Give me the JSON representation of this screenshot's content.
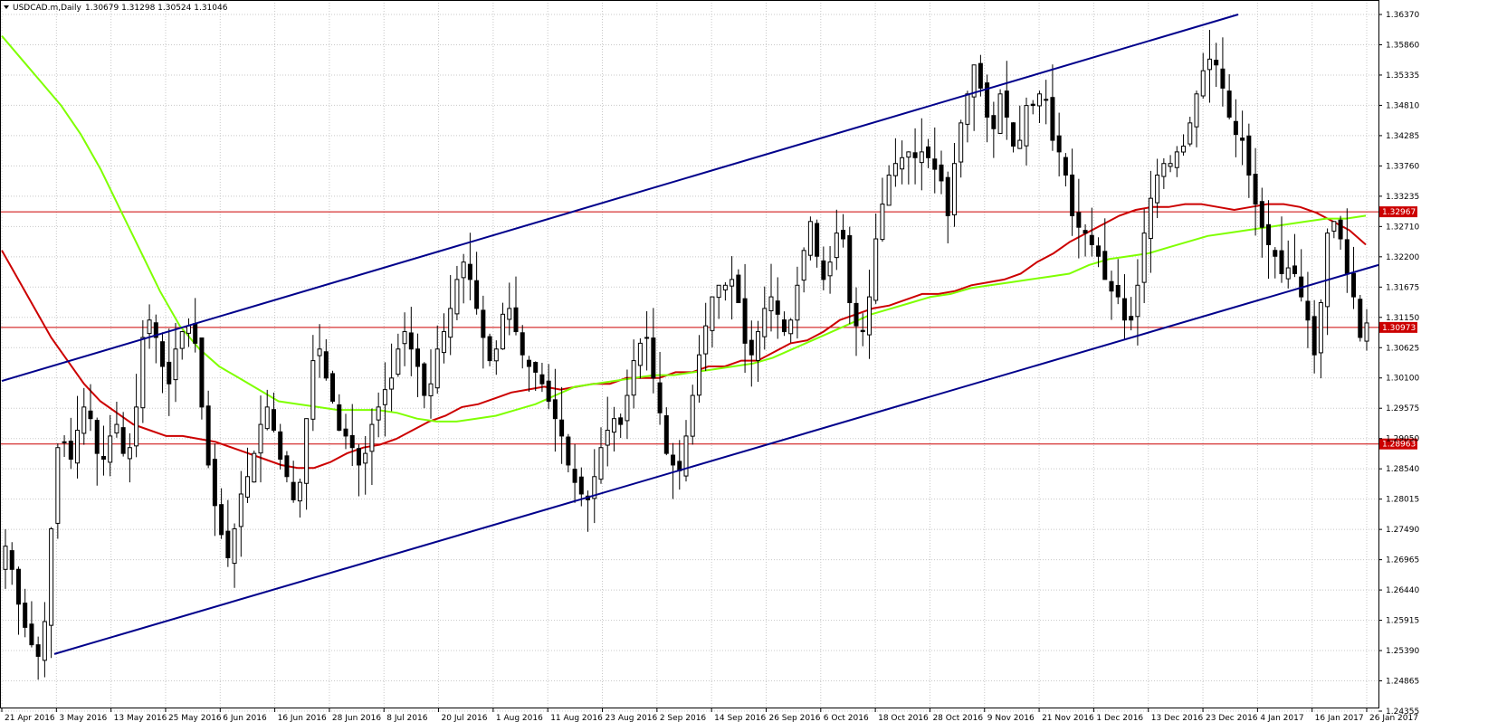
{
  "window": {
    "symbol_info": "USDCAD.m,Daily",
    "ohlc": "1.30679 1.31298 1.30524 1.31046"
  },
  "colors": {
    "background": "#ffffff",
    "grid": "#c8c8c8",
    "candle_bull_fill": "#ffffff",
    "candle_bear_fill": "#000000",
    "channel_line": "#00008b",
    "ma_fast": "#cc0000",
    "ma_slow": "#7fff00",
    "level_line": "#cc0000",
    "level_tag": "#cc0000"
  },
  "chart_data": {
    "type": "candlestick",
    "instrument": "USDCAD",
    "timeframe": "Daily",
    "ylim": [
      1.2435,
      1.637
    ],
    "y_ticks": [
      "1.36370",
      "1.35860",
      "1.35335",
      "1.34810",
      "1.34285",
      "1.33760",
      "1.33235",
      "1.32710",
      "1.32200",
      "1.31675",
      "1.31150",
      "1.30625",
      "1.30100",
      "1.29575",
      "1.29050",
      "1.28540",
      "1.28015",
      "1.27490",
      "1.26965",
      "1.26440",
      "1.25915",
      "1.25390",
      "1.24865",
      "1.24355"
    ],
    "x_ticks": [
      "21 Apr 2016",
      "3 May 2016",
      "13 May 2016",
      "25 May 2016",
      "6 Jun 2016",
      "16 Jun 2016",
      "28 Jun 2016",
      "8 Jul 2016",
      "20 Jul 2016",
      "1 Aug 2016",
      "11 Aug 2016",
      "23 Aug 2016",
      "2 Sep 2016",
      "14 Sep 2016",
      "26 Sep 2016",
      "6 Oct 2016",
      "18 Oct 2016",
      "28 Oct 2016",
      "9 Nov 2016",
      "21 Nov 2016",
      "1 Dec 2016",
      "13 Dec 2016",
      "23 Dec 2016",
      "4 Jan 2017",
      "16 Jan 2017",
      "26 Jan 2017"
    ],
    "horizontal_levels": [
      {
        "label": "1.32967",
        "value": 1.32967
      },
      {
        "label": "1.30973",
        "value": 1.30973
      },
      {
        "label": "1.28963",
        "value": 1.28963
      }
    ],
    "closes": [
      1.272,
      1.268,
      1.262,
      1.258,
      1.255,
      1.253,
      1.259,
      1.275,
      1.289,
      1.29,
      1.287,
      1.292,
      1.296,
      1.294,
      1.288,
      1.287,
      1.291,
      1.293,
      1.288,
      1.289,
      1.296,
      1.308,
      1.311,
      1.308,
      1.303,
      1.3,
      1.306,
      1.309,
      1.31,
      1.307,
      1.296,
      1.286,
      1.279,
      1.274,
      1.27,
      1.275,
      1.281,
      1.284,
      1.288,
      1.293,
      1.296,
      1.292,
      1.287,
      1.284,
      1.28,
      1.283,
      1.294,
      1.304,
      1.306,
      1.301,
      1.297,
      1.292,
      1.291,
      1.289,
      1.286,
      1.288,
      1.293,
      1.296,
      1.299,
      1.301,
      1.306,
      1.309,
      1.306,
      1.303,
      1.298,
      1.3,
      1.306,
      1.309,
      1.313,
      1.318,
      1.321,
      1.318,
      1.313,
      1.308,
      1.304,
      1.306,
      1.312,
      1.313,
      1.309,
      1.305,
      1.303,
      1.302,
      1.3,
      1.297,
      1.294,
      1.291,
      1.286,
      1.283,
      1.281,
      1.28,
      1.284,
      1.289,
      1.292,
      1.294,
      1.293,
      1.298,
      1.304,
      1.307,
      1.308,
      1.301,
      1.295,
      1.288,
      1.286,
      1.285,
      1.291,
      1.298,
      1.305,
      1.31,
      1.315,
      1.317,
      1.317,
      1.318,
      1.314,
      1.307,
      1.305,
      1.309,
      1.313,
      1.315,
      1.312,
      1.309,
      1.311,
      1.317,
      1.323,
      1.328,
      1.322,
      1.318,
      1.321,
      1.326,
      1.325,
      1.314,
      1.31,
      1.309,
      1.315,
      1.325,
      1.331,
      1.336,
      1.338,
      1.339,
      1.34,
      1.339,
      1.34,
      1.339,
      1.337,
      1.335,
      1.329,
      1.338,
      1.345,
      1.35,
      1.355,
      1.351,
      1.346,
      1.344,
      1.35,
      1.346,
      1.341,
      1.342,
      1.348,
      1.348,
      1.35,
      1.349,
      1.342,
      1.34,
      1.336,
      1.329,
      1.327,
      1.326,
      1.324,
      1.322,
      1.318,
      1.316,
      1.315,
      1.311,
      1.311,
      1.317,
      1.326,
      1.332,
      1.336,
      1.338,
      1.338,
      1.34,
      1.341,
      1.345,
      1.35,
      1.354,
      1.356,
      1.355,
      1.351,
      1.346,
      1.343,
      1.342,
      1.336,
      1.331,
      1.327,
      1.324,
      1.322,
      1.319,
      1.32,
      1.319,
      1.315,
      1.311,
      1.305,
      1.314,
      1.326,
      1.328,
      1.325,
      1.319,
      1.315,
      1.308,
      1.3105
    ],
    "ma_fast": [
      1.323,
      1.318,
      1.313,
      1.308,
      1.304,
      1.3,
      1.297,
      1.295,
      1.293,
      1.292,
      1.291,
      1.291,
      1.2905,
      1.29,
      1.289,
      1.288,
      1.287,
      1.286,
      1.2855,
      1.2855,
      1.2865,
      1.288,
      1.289,
      1.2895,
      1.2905,
      1.292,
      1.2935,
      1.2945,
      1.296,
      1.2965,
      1.2975,
      1.2985,
      1.299,
      1.2995,
      1.299,
      1.2995,
      1.3,
      1.3,
      1.301,
      1.301,
      1.301,
      1.302,
      1.302,
      1.303,
      1.303,
      1.304,
      1.304,
      1.3055,
      1.307,
      1.3075,
      1.309,
      1.311,
      1.312,
      1.313,
      1.3135,
      1.3145,
      1.3155,
      1.3155,
      1.316,
      1.317,
      1.3175,
      1.318,
      1.319,
      1.321,
      1.3225,
      1.3245,
      1.326,
      1.3275,
      1.329,
      1.33,
      1.3305,
      1.3305,
      1.331,
      1.331,
      1.3305,
      1.33,
      1.3305,
      1.331,
      1.331,
      1.3305,
      1.3295,
      1.328,
      1.3265,
      1.324
    ],
    "ma_slow": [
      1.36,
      1.356,
      1.352,
      1.348,
      1.343,
      1.337,
      1.33,
      1.323,
      1.316,
      1.31,
      1.306,
      1.303,
      1.301,
      1.299,
      1.297,
      1.2965,
      1.296,
      1.2955,
      1.2955,
      1.2955,
      1.295,
      1.294,
      1.2935,
      1.2935,
      1.294,
      1.2945,
      1.2955,
      1.2965,
      1.298,
      1.2995,
      1.3,
      1.3005,
      1.301,
      1.3015,
      1.3015,
      1.302,
      1.3025,
      1.303,
      1.3035,
      1.3045,
      1.306,
      1.3075,
      1.309,
      1.3105,
      1.312,
      1.313,
      1.314,
      1.315,
      1.3155,
      1.3165,
      1.317,
      1.3175,
      1.318,
      1.3185,
      1.319,
      1.3205,
      1.3215,
      1.322,
      1.3225,
      1.3235,
      1.3245,
      1.3255,
      1.326,
      1.3265,
      1.327,
      1.3275,
      1.328,
      1.3285,
      1.3285,
      1.329
    ],
    "channel_upper": {
      "from": [
        "21 Apr 2016",
        1.3005
      ],
      "to": [
        "4 Jan 2017",
        1.3637
      ]
    },
    "channel_lower": {
      "from": [
        "3 May 2016",
        1.2534
      ],
      "to": [
        "26 Jan 2017",
        1.3205
      ]
    }
  }
}
